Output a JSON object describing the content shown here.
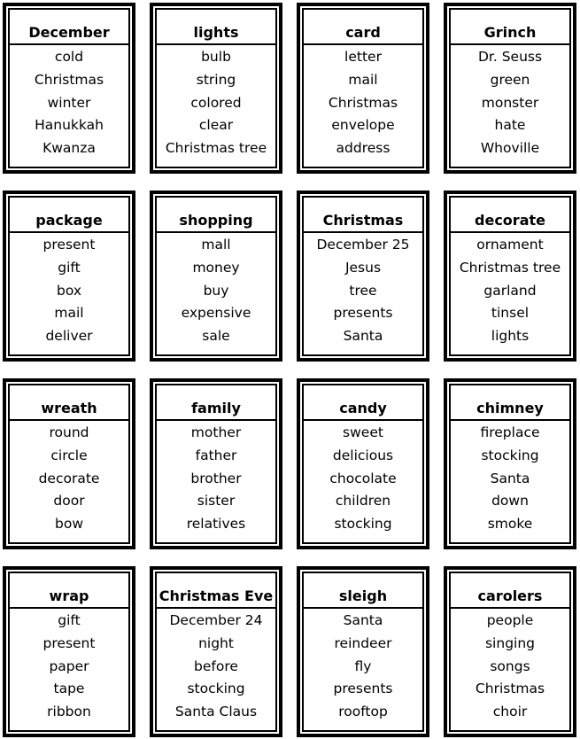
{
  "cards": [
    {
      "title": "December",
      "words": [
        "cold",
        "Christmas",
        "winter",
        "Hanukkah",
        "Kwanza"
      ]
    },
    {
      "title": "lights",
      "words": [
        "bulb",
        "string",
        "colored",
        "clear",
        "Christmas tree"
      ]
    },
    {
      "title": "card",
      "words": [
        "letter",
        "mail",
        "Christmas",
        "envelope",
        "address"
      ]
    },
    {
      "title": "Grinch",
      "words": [
        "Dr. Seuss",
        "green",
        "monster",
        "hate",
        "Whoville"
      ]
    },
    {
      "title": "package",
      "words": [
        "present",
        "gift",
        "box",
        "mail",
        "deliver"
      ]
    },
    {
      "title": "shopping",
      "words": [
        "mall",
        "money",
        "buy",
        "expensive",
        "sale"
      ]
    },
    {
      "title": "Christmas",
      "words": [
        "December 25",
        "Jesus",
        "tree",
        "presents",
        "Santa"
      ]
    },
    {
      "title": "decorate",
      "words": [
        "ornament",
        "Christmas tree",
        "garland",
        "tinsel",
        "lights"
      ]
    },
    {
      "title": "wreath",
      "words": [
        "round",
        "circle",
        "decorate",
        "door",
        "bow"
      ]
    },
    {
      "title": "family",
      "words": [
        "mother",
        "father",
        "brother",
        "sister",
        "relatives"
      ]
    },
    {
      "title": "candy",
      "words": [
        "sweet",
        "delicious",
        "chocolate",
        "children",
        "stocking"
      ]
    },
    {
      "title": "chimney",
      "words": [
        "fireplace",
        "stocking",
        "Santa",
        "down",
        "smoke"
      ]
    },
    {
      "title": "wrap",
      "words": [
        "gift",
        "present",
        "paper",
        "tape",
        "ribbon"
      ]
    },
    {
      "title": "Christmas Eve",
      "words": [
        "December 24",
        "night",
        "before",
        "stocking",
        "Santa Claus"
      ]
    },
    {
      "title": "sleigh",
      "words": [
        "Santa",
        "reindeer",
        "fly",
        "presents",
        "rooftop"
      ]
    },
    {
      "title": "carolers",
      "words": [
        "people",
        "singing",
        "songs",
        "Christmas",
        "choir"
      ]
    }
  ]
}
